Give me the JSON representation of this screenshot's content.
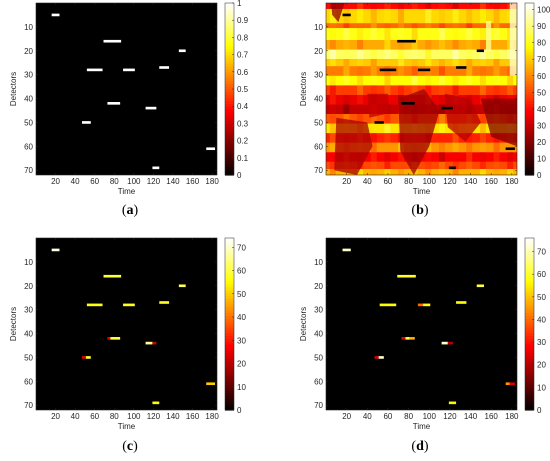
{
  "chart_data": [
    {
      "type": "heatmap",
      "caption_letter": "a",
      "xlabel": "Time",
      "ylabel": "Detectors",
      "xlim": [
        0,
        185
      ],
      "ylim": [
        0,
        72
      ],
      "xticks": [
        20,
        40,
        60,
        80,
        100,
        120,
        140,
        160,
        180
      ],
      "yticks": [
        10,
        20,
        30,
        40,
        50,
        60,
        70
      ],
      "colorbar": {
        "range": [
          0,
          1
        ],
        "ticks": [
          0,
          0.1,
          0.2,
          0.3,
          0.4,
          0.5,
          0.6,
          0.7,
          0.8,
          0.9,
          1
        ],
        "labels": [
          "0",
          "0.1",
          "0.2",
          "0.3",
          "0.4",
          "0.5",
          "0.6",
          "0.7",
          "0.8",
          "0.9",
          "1"
        ]
      },
      "background_value": 0,
      "segments": [
        {
          "row": 5,
          "x_start": 16,
          "x_end": 24,
          "value": 1
        },
        {
          "row": 16,
          "x_start": 69,
          "x_end": 87,
          "value": 1
        },
        {
          "row": 20,
          "x_start": 146,
          "x_end": 153,
          "value": 1
        },
        {
          "row": 27,
          "x_start": 126,
          "x_end": 136,
          "value": 1
        },
        {
          "row": 28,
          "x_start": 52,
          "x_end": 68,
          "value": 1
        },
        {
          "row": 28,
          "x_start": 89,
          "x_end": 101,
          "value": 1
        },
        {
          "row": 42,
          "x_start": 73,
          "x_end": 86,
          "value": 1
        },
        {
          "row": 44,
          "x_start": 112,
          "x_end": 123,
          "value": 1
        },
        {
          "row": 50,
          "x_start": 47,
          "x_end": 56,
          "value": 1
        },
        {
          "row": 61,
          "x_start": 174,
          "x_end": 183,
          "value": 1
        },
        {
          "row": 69,
          "x_start": 119,
          "x_end": 126,
          "value": 1
        }
      ]
    },
    {
      "type": "heatmap",
      "caption_letter": "b",
      "xlabel": "Time",
      "ylabel": "Detectors",
      "xlim": [
        0,
        185
      ],
      "ylim": [
        0,
        72
      ],
      "xticks": [
        20,
        40,
        60,
        80,
        100,
        120,
        140,
        160,
        180
      ],
      "yticks": [
        10,
        20,
        30,
        40,
        50,
        60,
        70
      ],
      "colorbar": {
        "range": [
          0,
          104
        ],
        "ticks": [
          0,
          10,
          20,
          30,
          40,
          50,
          60,
          70,
          80,
          90,
          100
        ],
        "labels": [
          "0",
          "10",
          "20",
          "30",
          "40",
          "50",
          "60",
          "70",
          "80",
          "90",
          "100"
        ]
      },
      "background_value": 60,
      "row_bands": [
        {
          "rows": [
            0,
            2
          ],
          "value": 40
        },
        {
          "rows": [
            3,
            8
          ],
          "value": 72
        },
        {
          "rows": [
            9,
            10
          ],
          "value": 55
        },
        {
          "rows": [
            11,
            15
          ],
          "value": 80
        },
        {
          "rows": [
            16,
            19
          ],
          "value": 65
        },
        {
          "rows": [
            20,
            23
          ],
          "value": 88
        },
        {
          "rows": [
            24,
            26
          ],
          "value": 70
        },
        {
          "rows": [
            27,
            30
          ],
          "value": 58
        },
        {
          "rows": [
            31,
            34
          ],
          "value": 78
        },
        {
          "rows": [
            35,
            38
          ],
          "value": 48
        },
        {
          "rows": [
            39,
            42
          ],
          "value": 36
        },
        {
          "rows": [
            43,
            46
          ],
          "value": 30
        },
        {
          "rows": [
            47,
            50
          ],
          "value": 52
        },
        {
          "rows": [
            51,
            54
          ],
          "value": 74
        },
        {
          "rows": [
            55,
            58
          ],
          "value": 44
        },
        {
          "rows": [
            59,
            62
          ],
          "value": 62
        },
        {
          "rows": [
            63,
            66
          ],
          "value": 38
        },
        {
          "rows": [
            67,
            69
          ],
          "value": 50
        },
        {
          "rows": [
            70,
            72
          ],
          "value": 66
        }
      ],
      "column_bands": [
        {
          "x": [
            178,
            185
          ],
          "rows": [
            0,
            30
          ],
          "value": 98
        },
        {
          "x": [
            155,
            160
          ],
          "rows": [
            8,
            20
          ],
          "value": 92
        }
      ],
      "regions": [
        {
          "points": [
            [
              5,
              0
            ],
            [
              18,
              0
            ],
            [
              12,
              8
            ],
            [
              6,
              5
            ]
          ],
          "value": 22
        },
        {
          "points": [
            [
              70,
              40
            ],
            [
              95,
              36
            ],
            [
              110,
              45
            ],
            [
              100,
              60
            ],
            [
              85,
              72
            ],
            [
              72,
              62
            ]
          ],
          "value": 24
        },
        {
          "points": [
            [
              10,
              48
            ],
            [
              40,
              50
            ],
            [
              45,
              60
            ],
            [
              30,
              72
            ],
            [
              8,
              70
            ]
          ],
          "value": 26
        },
        {
          "points": [
            [
              115,
              38
            ],
            [
              140,
              40
            ],
            [
              150,
              50
            ],
            [
              135,
              58
            ],
            [
              118,
              52
            ]
          ],
          "value": 28
        },
        {
          "points": [
            [
              150,
              40
            ],
            [
              185,
              40
            ],
            [
              185,
              60
            ],
            [
              160,
              56
            ]
          ],
          "value": 20
        },
        {
          "points": [
            [
              40,
              38
            ],
            [
              60,
              38
            ],
            [
              62,
              46
            ],
            [
              42,
              48
            ]
          ],
          "value": 30
        }
      ],
      "segments": [
        {
          "row": 5,
          "x_start": 16,
          "x_end": 24,
          "value": 0
        },
        {
          "row": 16,
          "x_start": 69,
          "x_end": 87,
          "value": 0
        },
        {
          "row": 20,
          "x_start": 146,
          "x_end": 153,
          "value": 0
        },
        {
          "row": 27,
          "x_start": 126,
          "x_end": 136,
          "value": 0
        },
        {
          "row": 28,
          "x_start": 52,
          "x_end": 68,
          "value": 0
        },
        {
          "row": 28,
          "x_start": 89,
          "x_end": 101,
          "value": 0
        },
        {
          "row": 42,
          "x_start": 73,
          "x_end": 86,
          "value": 0
        },
        {
          "row": 44,
          "x_start": 112,
          "x_end": 123,
          "value": 0
        },
        {
          "row": 50,
          "x_start": 47,
          "x_end": 56,
          "value": 0
        },
        {
          "row": 61,
          "x_start": 174,
          "x_end": 183,
          "value": 0
        },
        {
          "row": 69,
          "x_start": 119,
          "x_end": 126,
          "value": 0
        }
      ]
    },
    {
      "type": "heatmap",
      "caption_letter": "c",
      "xlabel": "Time",
      "ylabel": "Detectors",
      "xlim": [
        0,
        185
      ],
      "ylim": [
        0,
        72
      ],
      "xticks": [
        20,
        40,
        60,
        80,
        100,
        120,
        140,
        160,
        180
      ],
      "yticks": [
        10,
        20,
        30,
        40,
        50,
        60,
        70
      ],
      "colorbar": {
        "range": [
          0,
          74
        ],
        "ticks": [
          0,
          10,
          20,
          30,
          40,
          50,
          60,
          70
        ],
        "labels": [
          "0",
          "10",
          "20",
          "30",
          "40",
          "50",
          "60",
          "70"
        ]
      },
      "background_value": 0,
      "segments": [
        {
          "row": 5,
          "x_start": 16,
          "x_end": 24,
          "value": 72
        },
        {
          "row": 16,
          "x_start": 69,
          "x_end": 87,
          "value": 60
        },
        {
          "row": 20,
          "x_start": 146,
          "x_end": 153,
          "value": 62
        },
        {
          "row": 27,
          "x_start": 126,
          "x_end": 136,
          "value": 58
        },
        {
          "row": 28,
          "x_start": 52,
          "x_end": 68,
          "value": 57
        },
        {
          "row": 28,
          "x_start": 89,
          "x_end": 101,
          "value": 58
        },
        {
          "row": 42,
          "x_start": 73,
          "x_end": 76,
          "value": 25
        },
        {
          "row": 42,
          "x_start": 76,
          "x_end": 86,
          "value": 60
        },
        {
          "row": 44,
          "x_start": 112,
          "x_end": 119,
          "value": 66
        },
        {
          "row": 44,
          "x_start": 119,
          "x_end": 123,
          "value": 22
        },
        {
          "row": 50,
          "x_start": 47,
          "x_end": 51,
          "value": 25
        },
        {
          "row": 50,
          "x_start": 51,
          "x_end": 56,
          "value": 58
        },
        {
          "row": 61,
          "x_start": 174,
          "x_end": 183,
          "value": 50
        },
        {
          "row": 69,
          "x_start": 119,
          "x_end": 126,
          "value": 56
        }
      ]
    },
    {
      "type": "heatmap",
      "caption_letter": "d",
      "xlabel": "Time",
      "ylabel": "Detectors",
      "xlim": [
        0,
        185
      ],
      "ylim": [
        0,
        72
      ],
      "xticks": [
        20,
        40,
        60,
        80,
        100,
        120,
        140,
        160,
        180
      ],
      "yticks": [
        10,
        20,
        30,
        40,
        50,
        60,
        70
      ],
      "colorbar": {
        "range": [
          0,
          76
        ],
        "ticks": [
          0,
          10,
          20,
          30,
          40,
          50,
          60,
          70
        ],
        "labels": [
          "0",
          "10",
          "20",
          "30",
          "40",
          "50",
          "60",
          "70"
        ]
      },
      "background_value": 0,
      "segments": [
        {
          "row": 5,
          "x_start": 16,
          "x_end": 24,
          "value": 72
        },
        {
          "row": 16,
          "x_start": 69,
          "x_end": 87,
          "value": 60
        },
        {
          "row": 20,
          "x_start": 146,
          "x_end": 153,
          "value": 62
        },
        {
          "row": 27,
          "x_start": 126,
          "x_end": 136,
          "value": 58
        },
        {
          "row": 28,
          "x_start": 52,
          "x_end": 68,
          "value": 57
        },
        {
          "row": 28,
          "x_start": 89,
          "x_end": 94,
          "value": 40
        },
        {
          "row": 28,
          "x_start": 94,
          "x_end": 101,
          "value": 58
        },
        {
          "row": 42,
          "x_start": 73,
          "x_end": 77,
          "value": 25
        },
        {
          "row": 42,
          "x_start": 77,
          "x_end": 81,
          "value": 62
        },
        {
          "row": 42,
          "x_start": 81,
          "x_end": 86,
          "value": 48
        },
        {
          "row": 44,
          "x_start": 112,
          "x_end": 118,
          "value": 72
        },
        {
          "row": 44,
          "x_start": 118,
          "x_end": 123,
          "value": 20
        },
        {
          "row": 50,
          "x_start": 47,
          "x_end": 51,
          "value": 25
        },
        {
          "row": 50,
          "x_start": 51,
          "x_end": 56,
          "value": 72
        },
        {
          "row": 61,
          "x_start": 174,
          "x_end": 178,
          "value": 45
        },
        {
          "row": 61,
          "x_start": 178,
          "x_end": 183,
          "value": 25
        },
        {
          "row": 69,
          "x_start": 119,
          "x_end": 126,
          "value": 56
        }
      ]
    }
  ]
}
